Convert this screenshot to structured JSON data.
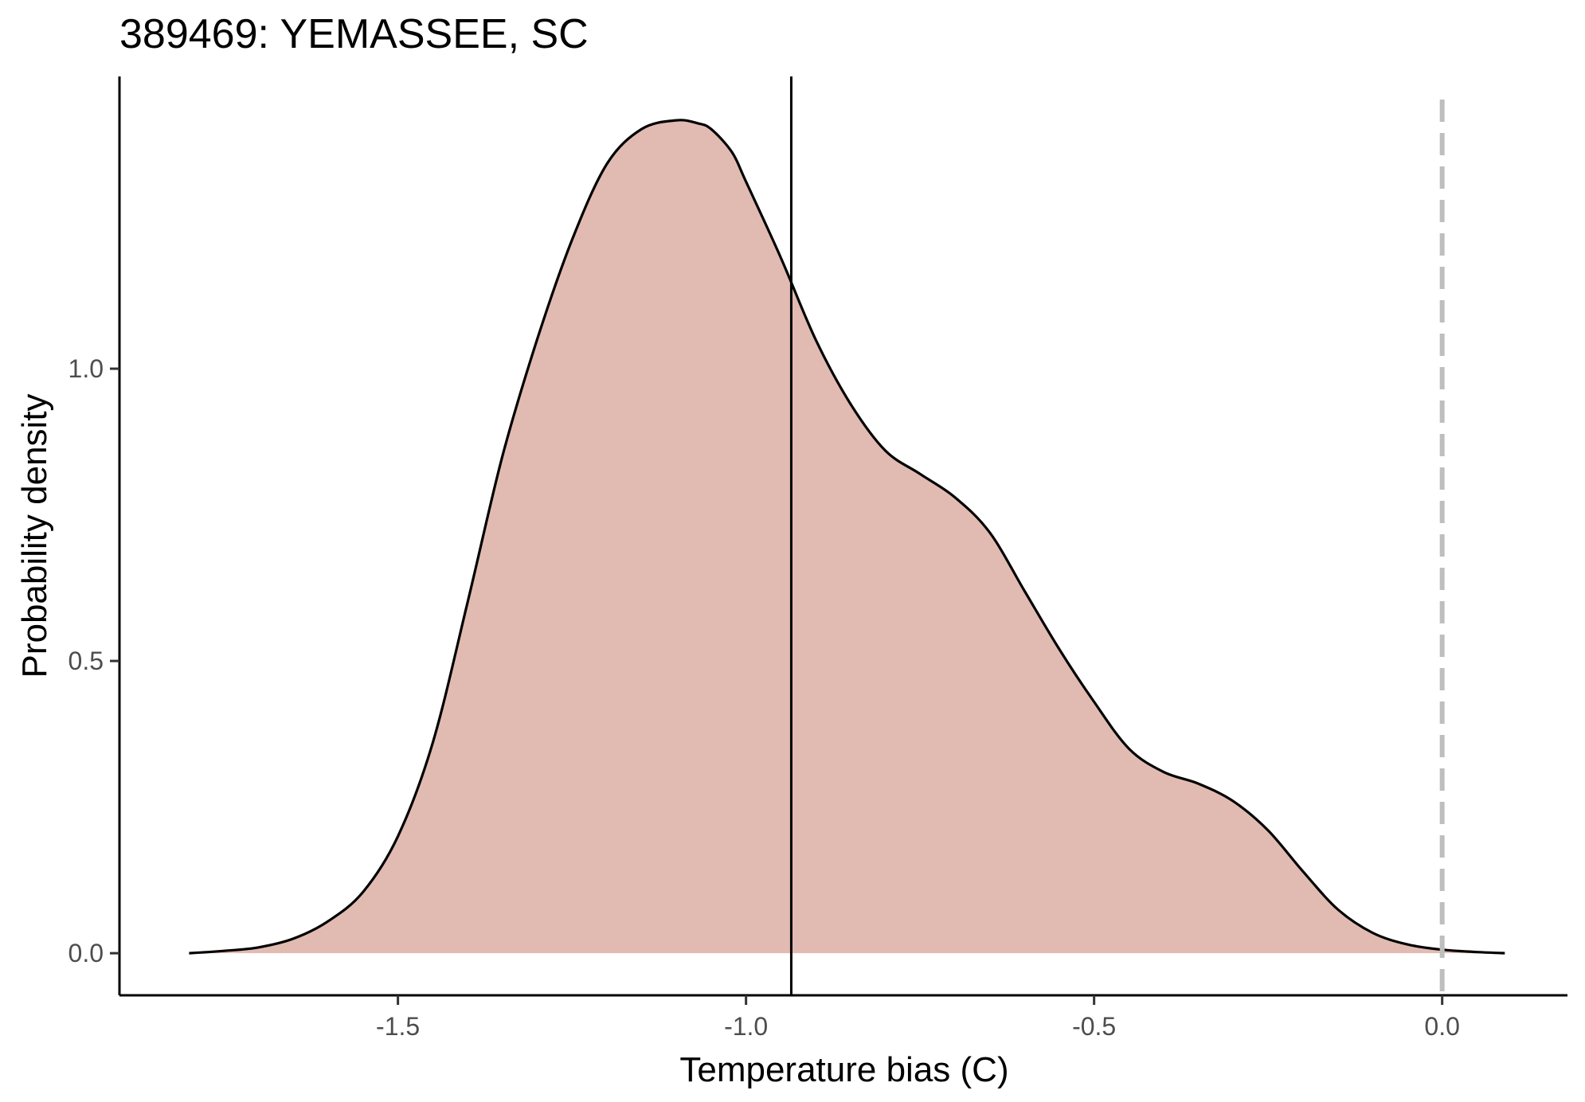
{
  "chart_data": {
    "type": "area",
    "title": "389469: YEMASSEE, SC",
    "xlabel": "Temperature bias (C)",
    "ylabel": "Probability density",
    "xlim": [
      -1.9,
      0.18
    ],
    "ylim": [
      -0.072,
      1.5
    ],
    "x_ticks": [
      -1.5,
      -1.0,
      -0.5,
      0.0
    ],
    "x_tick_labels": [
      "-1.5",
      "-1.0",
      "-0.5",
      "0.0"
    ],
    "y_ticks": [
      0.0,
      0.5,
      1.0
    ],
    "y_tick_labels": [
      "0.0",
      "0.5",
      "1.0"
    ],
    "grid": false,
    "fill_color": "#e1bbb2",
    "line_color": "#000000",
    "reference_line_color": "#bebebe",
    "series": [
      {
        "x": [
          -1.8,
          -1.75,
          -1.7,
          -1.65,
          -1.6,
          -1.55,
          -1.5,
          -1.45,
          -1.4,
          -1.35,
          -1.3,
          -1.25,
          -1.2,
          -1.15,
          -1.1,
          -1.07,
          -1.05,
          -1.02,
          -1.0,
          -0.95,
          -0.9,
          -0.85,
          -0.8,
          -0.75,
          -0.7,
          -0.65,
          -0.6,
          -0.55,
          -0.5,
          -0.45,
          -0.4,
          -0.35,
          -0.3,
          -0.25,
          -0.2,
          -0.15,
          -0.1,
          -0.05,
          0.0,
          0.05,
          0.09
        ],
        "y": [
          0.0,
          0.004,
          0.01,
          0.025,
          0.055,
          0.105,
          0.2,
          0.36,
          0.6,
          0.85,
          1.05,
          1.22,
          1.35,
          1.41,
          1.425,
          1.42,
          1.41,
          1.37,
          1.32,
          1.19,
          1.05,
          0.94,
          0.86,
          0.82,
          0.78,
          0.72,
          0.62,
          0.52,
          0.43,
          0.35,
          0.31,
          0.29,
          0.26,
          0.21,
          0.14,
          0.075,
          0.035,
          0.015,
          0.006,
          0.002,
          0.0
        ]
      }
    ],
    "mean_line_x": -0.935,
    "reference_line_x": 0.0
  }
}
